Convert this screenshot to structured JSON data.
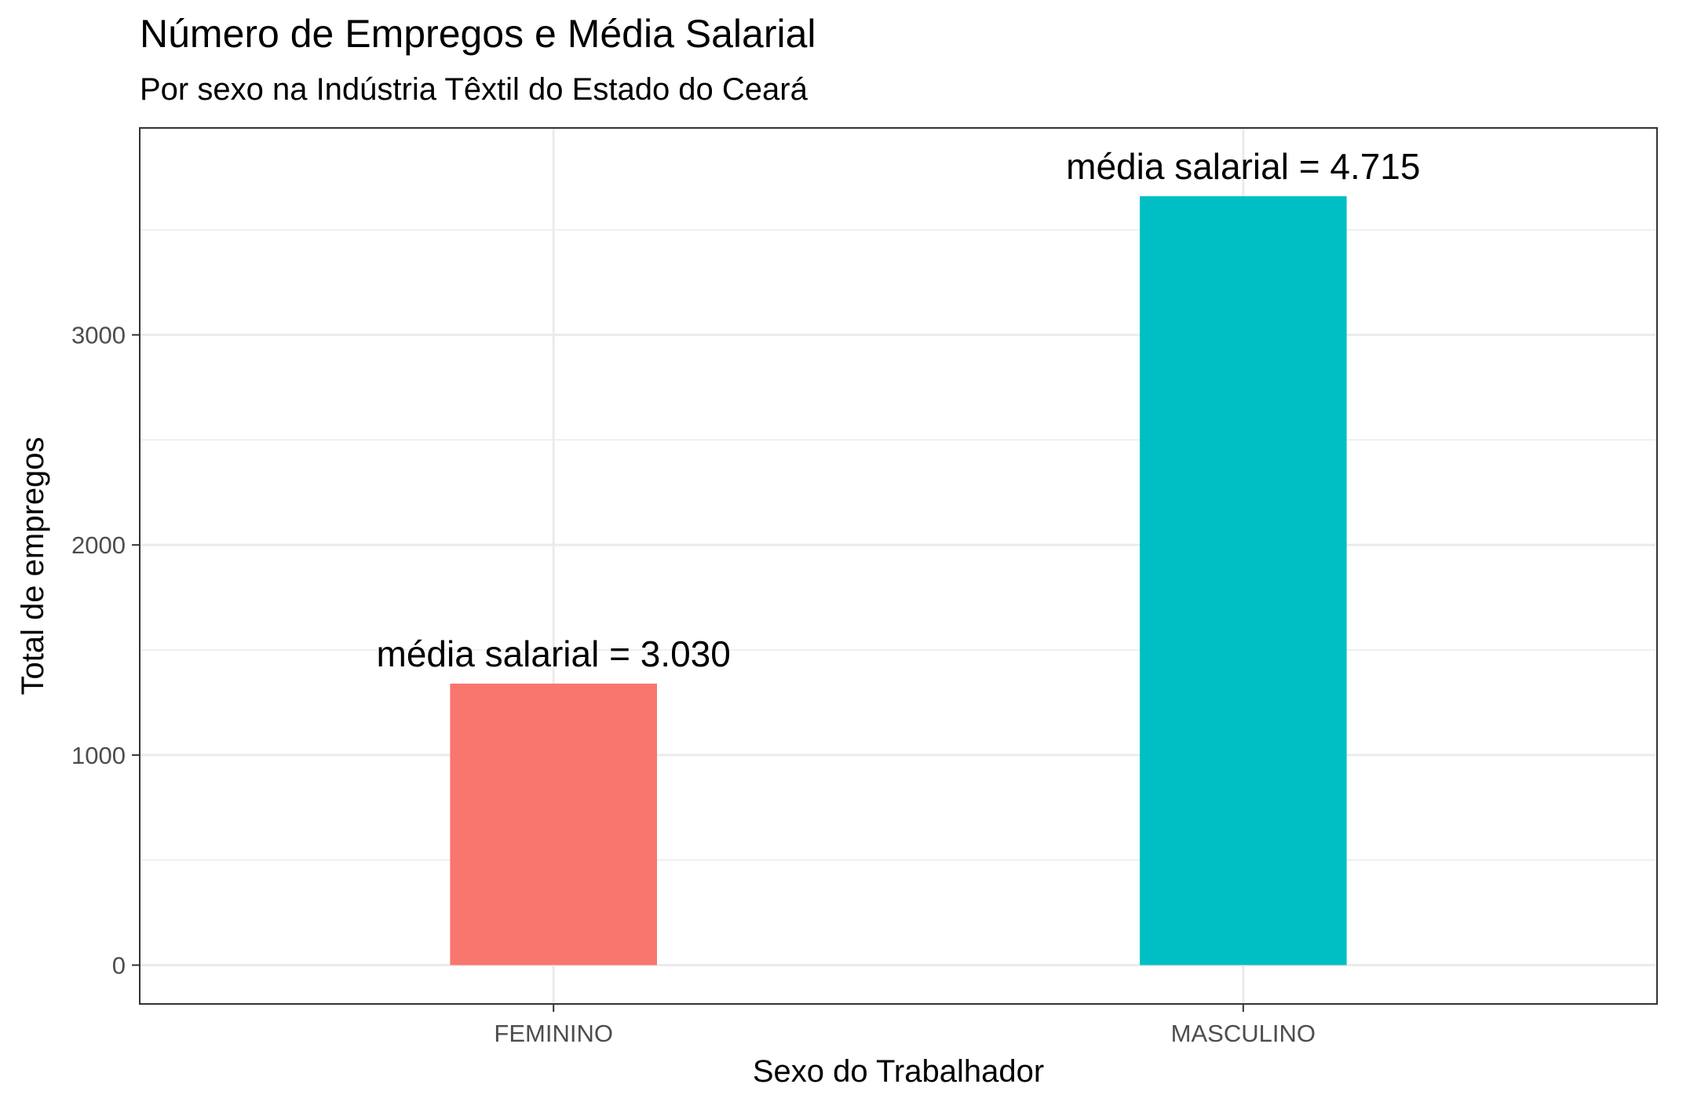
{
  "chart_data": {
    "type": "bar",
    "title": "Número de Empregos e Média Salarial",
    "subtitle": "Por sexo na Indústria Têxtil do Estado do Ceará",
    "xlabel": "Sexo do Trabalhador",
    "ylabel": "Total de empregos",
    "categories": [
      "FEMININO",
      "MASCULINO"
    ],
    "values": [
      1340,
      3660
    ],
    "bar_labels": [
      "média salarial = 3.030",
      "média salarial = 4.715"
    ],
    "colors": [
      "#F8766D",
      "#00BFC4"
    ],
    "yticks": [
      0,
      1000,
      2000,
      3000
    ],
    "ytick_labels": [
      "0",
      "1000",
      "2000",
      "3000"
    ],
    "ylim": [
      -185,
      3985
    ],
    "grid": true,
    "legend": "none"
  }
}
